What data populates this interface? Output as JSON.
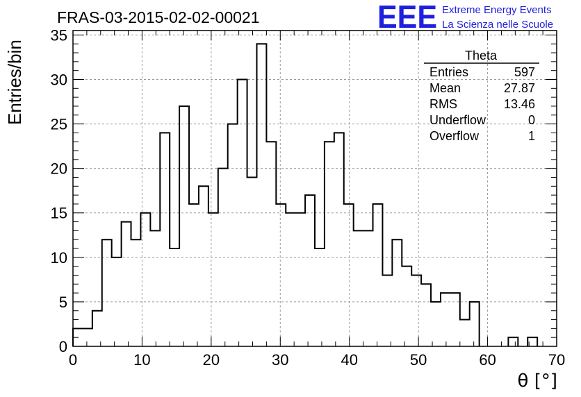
{
  "header": {
    "title": "FRAS-03-2015-02-02-00021",
    "logo_text": "EEE",
    "logo_line1": "Extreme Energy Events",
    "logo_line2": "La Scienza nelle Scuole",
    "logo_color": "#1f1fe0"
  },
  "chart_data": {
    "type": "bar",
    "histogram": true,
    "xlabel": "θ [°]",
    "ylabel": "Entries/bin",
    "xlim": [
      0,
      70
    ],
    "ylim": [
      0,
      35.5
    ],
    "xticks": [
      0,
      10,
      20,
      30,
      40,
      50,
      60,
      70
    ],
    "yticks": [
      0,
      5,
      10,
      15,
      20,
      25,
      30,
      35
    ],
    "grid": true,
    "bin_width": 1.4,
    "bin_edges_start": 0,
    "values": [
      2,
      2,
      4,
      12,
      10,
      14,
      12,
      15,
      13,
      24,
      11,
      27,
      16,
      18,
      15,
      20,
      25,
      30,
      19,
      34,
      23,
      16,
      15,
      15,
      17,
      11,
      23,
      24,
      16,
      13,
      13,
      16,
      8,
      12,
      9,
      8,
      7,
      5,
      6,
      6,
      3,
      5,
      0,
      0,
      0,
      1,
      0,
      1,
      0,
      0
    ],
    "line_color": "#000000",
    "stats_box": {
      "title": "Theta",
      "legend_position": "top-right",
      "rows": [
        {
          "label": "Entries",
          "value": "597"
        },
        {
          "label": "Mean",
          "value": "27.87"
        },
        {
          "label": "RMS",
          "value": "13.46"
        },
        {
          "label": "Underflow",
          "value": "0"
        },
        {
          "label": "Overflow",
          "value": "1"
        }
      ]
    }
  }
}
